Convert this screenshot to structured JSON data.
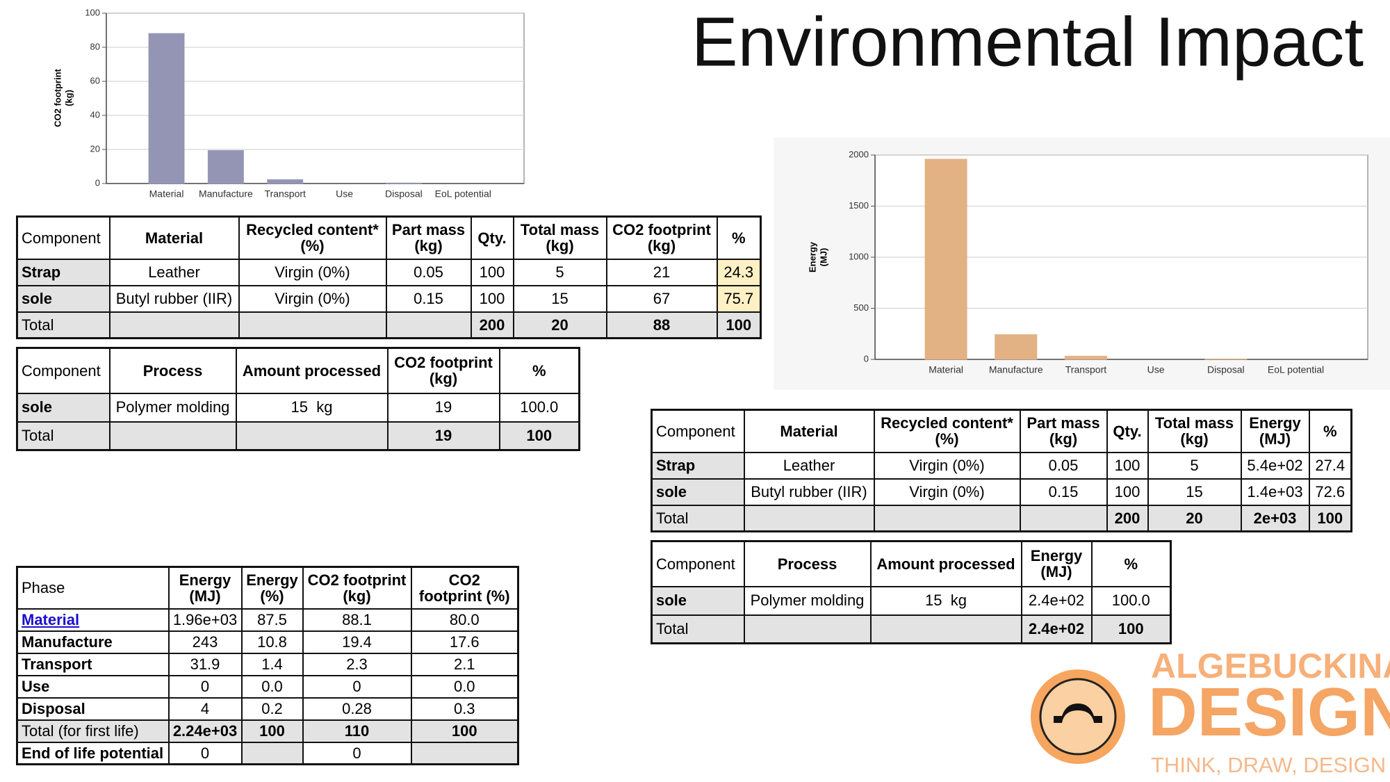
{
  "title": "Environmental Impact",
  "chart_data": [
    {
      "type": "bar",
      "y_label": [
        "CO2 footprint",
        "(kg)"
      ],
      "categories": [
        "Material",
        "Manufacture",
        "Transport",
        "Use",
        "Disposal",
        "EoL potential"
      ],
      "values": [
        88.1,
        19.4,
        2.3,
        0,
        0.28,
        0
      ],
      "color": "#a5a5c8",
      "ylim": [
        0,
        100
      ],
      "yticks": [
        0,
        20,
        40,
        60,
        80,
        100
      ],
      "grid": true
    },
    {
      "type": "bar",
      "y_label": [
        "Energy",
        "(MJ)"
      ],
      "categories": [
        "Material",
        "Manufacture",
        "Transport",
        "Use",
        "Disposal",
        "EoL potential"
      ],
      "values": [
        1960,
        243,
        31.9,
        0,
        4,
        0
      ],
      "color": "#fbc593",
      "ylim": [
        0,
        2000
      ],
      "yticks": [
        0,
        500,
        1000,
        1500,
        2000
      ],
      "grid": true
    }
  ],
  "tables": [
    {
      "header": [
        "Component",
        "Material",
        "Recycled content* (%)",
        "Part mass (kg)",
        "Qty.",
        "Total mass (kg)",
        "CO2 footprint (kg)",
        "%"
      ],
      "rows": [
        [
          "Strap",
          "Leather",
          "Virgin (0%)",
          "0.05",
          "100",
          "5",
          "21",
          "24.3"
        ],
        [
          "sole",
          "Butyl rubber (IIR)",
          "Virgin (0%)",
          "0.15",
          "100",
          "15",
          "67",
          "75.7"
        ],
        [
          "Total",
          null,
          null,
          null,
          "200",
          "20",
          "88",
          "100"
        ]
      ]
    },
    {
      "header": [
        "Component",
        "Process",
        "Amount processed",
        "CO2 footprint (kg)",
        "%"
      ],
      "rows": [
        [
          "sole",
          "Polymer molding",
          "15  kg",
          "19",
          "100.0"
        ],
        [
          "Total",
          null,
          null,
          "19",
          "100"
        ]
      ]
    },
    {
      "header": [
        "Phase",
        "Energy (MJ)",
        "Energy (%)",
        "CO2 footprint (kg)",
        "CO2 footprint (%)"
      ],
      "rows": [
        [
          "Material",
          "1.96e+03",
          "87.5",
          "88.1",
          "80.0"
        ],
        [
          "Manufacture",
          "243",
          "10.8",
          "19.4",
          "17.6"
        ],
        [
          "Transport",
          "31.9",
          "1.4",
          "2.3",
          "2.1"
        ],
        [
          "Use",
          "0",
          "0.0",
          "0",
          "0.0"
        ],
        [
          "Disposal",
          "4",
          "0.2",
          "0.28",
          "0.3"
        ],
        [
          "Total (for first life)",
          "2.24e+03",
          "100",
          "110",
          "100"
        ],
        [
          "End of life potential",
          "0",
          null,
          "0",
          null
        ]
      ]
    },
    {
      "header": [
        "Component",
        "Material",
        "Recycled content* (%)",
        "Part mass (kg)",
        "Qty.",
        "Total mass (kg)",
        "Energy (MJ)",
        "%"
      ],
      "rows": [
        [
          "Strap",
          "Leather",
          "Virgin (0%)",
          "0.05",
          "100",
          "5",
          "5.4e+02",
          "27.4"
        ],
        [
          "sole",
          "Butyl rubber (IIR)",
          "Virgin (0%)",
          "0.15",
          "100",
          "15",
          "1.4e+03",
          "72.6"
        ],
        [
          "Total",
          null,
          null,
          null,
          "200",
          "20",
          "2e+03",
          "100"
        ]
      ]
    },
    {
      "header": [
        "Component",
        "Process",
        "Amount processed",
        "Energy (MJ)",
        "%"
      ],
      "rows": [
        [
          "sole",
          "Polymer molding",
          "15  kg",
          "2.4e+02",
          "100.0"
        ],
        [
          "Total",
          null,
          null,
          "2.4e+02",
          "100"
        ]
      ]
    }
  ],
  "logo": {
    "line1": "ALGEBUCKINA",
    "line2": "DESIGN",
    "tagline": "THINK, DRAW, DESIGN"
  }
}
